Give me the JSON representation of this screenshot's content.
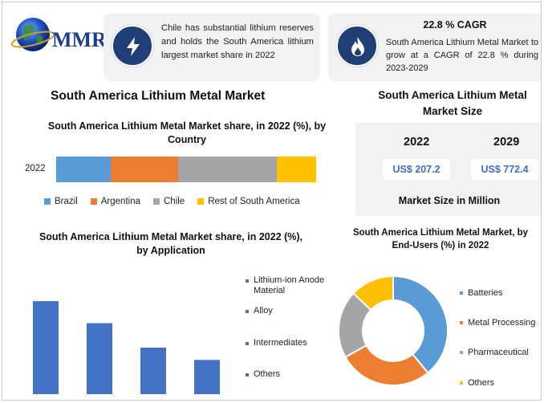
{
  "logo": {
    "text": "MMR"
  },
  "info_card_1": {
    "icon": "lightning-bolt-icon",
    "text": "Chile has substantial lithium reserves and holds the South America lithium largest market share in 2022"
  },
  "info_card_2": {
    "icon": "flame-icon",
    "title": "22.8 % CAGR",
    "text": "South America Lithium Metal Market to grow at a CAGR of 22.8 % during 2023-2029"
  },
  "main_title": "South America Lithium Metal Market",
  "market_size": {
    "title": "South America Lithium Metal Market Size",
    "years": [
      "2022",
      "2029"
    ],
    "values": [
      "US$ 207.2",
      "US$ 772.4"
    ],
    "caption": "Market Size in Million"
  },
  "chart_data": [
    {
      "type": "bar",
      "orientation": "horizontal-stacked",
      "title": "South America Lithium Metal Market share, in 2022 (%), by Country",
      "categories": [
        "2022"
      ],
      "series": [
        {
          "name": "Brazil",
          "values": [
            21
          ],
          "color": "#5b9bd5"
        },
        {
          "name": "Argentina",
          "values": [
            26
          ],
          "color": "#ed7d31"
        },
        {
          "name": "Chile",
          "values": [
            38
          ],
          "color": "#a5a5a5"
        },
        {
          "name": "Rest of South America",
          "values": [
            15
          ],
          "color": "#ffc000"
        }
      ],
      "legend": "bottom"
    },
    {
      "type": "bar",
      "title": "South America Lithium Metal Market share, in 2022 (%), by Application",
      "categories": [
        "Lithium-ion Anode Material",
        "Alloy",
        "Intermediates",
        "Others"
      ],
      "values": [
        38,
        29,
        19,
        14
      ],
      "ylim": [
        0,
        40
      ],
      "color": "#4472c4",
      "legend": "right"
    },
    {
      "type": "pie",
      "donut": true,
      "title": "South America Lithium Metal Market, by End-Users (%) in 2022",
      "labels": [
        "Batteries",
        "Metal Processing",
        "Pharmaceutical",
        "Others"
      ],
      "values": [
        39,
        28,
        20,
        13
      ],
      "colors": [
        "#5b9bd5",
        "#ed7d31",
        "#a5a5a5",
        "#ffc000"
      ],
      "legend": "right"
    }
  ]
}
